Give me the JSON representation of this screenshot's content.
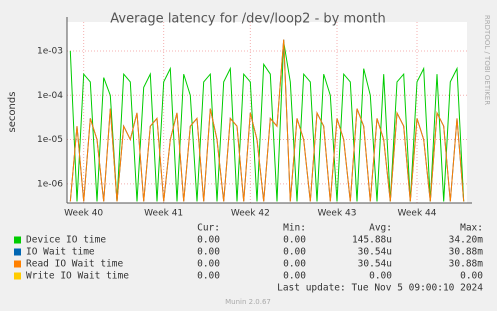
{
  "chart_data": {
    "type": "line",
    "title": "Average latency for /dev/loop2 - by month",
    "y_label": "seconds",
    "side_text": "RRDTOOL / TOBI OETIKER",
    "log_scale": true,
    "grid": true,
    "ylim": [
      3.7e-07,
      0.0045
    ],
    "yticks": [
      {
        "value": 1e-06,
        "label": "1e-06"
      },
      {
        "value": 1e-05,
        "label": "1e-05"
      },
      {
        "value": 0.0001,
        "label": "1e-04"
      },
      {
        "value": 0.001,
        "label": "1e-03"
      }
    ],
    "categories": [
      null,
      null,
      "Week 40",
      null,
      null,
      null,
      null,
      null,
      null,
      null,
      null,
      null,
      null,
      null,
      "Week 41",
      null,
      null,
      null,
      null,
      null,
      null,
      null,
      null,
      null,
      null,
      null,
      null,
      "Week 42",
      null,
      null,
      null,
      null,
      null,
      null,
      null,
      null,
      null,
      null,
      null,
      null,
      "Week 43",
      null,
      null,
      null,
      null,
      null,
      null,
      null,
      null,
      null,
      null,
      null,
      "Week 44",
      null,
      null,
      null,
      null,
      null,
      null,
      null
    ],
    "series": [
      {
        "name": "Device IO time",
        "color": "#00cc00",
        "values": [
          0.001,
          4e-07,
          0.0003,
          0.0002,
          4e-07,
          0.00025,
          0.0001,
          4e-07,
          0.0003,
          0.0002,
          4e-07,
          0.00015,
          0.0003,
          4e-07,
          0.0002,
          0.0004,
          4e-07,
          0.0003,
          0.0001,
          4e-07,
          0.0002,
          0.0003,
          4e-07,
          0.0002,
          0.0004,
          4e-07,
          0.0003,
          0.0002,
          4e-07,
          0.0005,
          0.0003,
          4e-07,
          0.0016,
          0.0002,
          4e-07,
          0.0003,
          0.0002,
          4e-07,
          0.0003,
          0.0001,
          4e-07,
          0.0003,
          0.0002,
          4e-07,
          0.0004,
          0.0001,
          4e-07,
          0.0003,
          4e-07,
          0.0002,
          0.0003,
          4e-07,
          0.0002,
          0.0004,
          4e-07,
          0.0003,
          4e-07,
          0.0002,
          0.0004,
          4e-07
        ]
      },
      {
        "name": "IO Wait time",
        "color": "#0066b3",
        "values": [
          4e-07,
          2e-05,
          4e-07,
          3e-05,
          1e-05,
          4e-07,
          5e-05,
          4e-07,
          2e-05,
          1e-05,
          4e-05,
          4e-07,
          2e-05,
          3e-05,
          4e-07,
          1e-05,
          4e-05,
          4e-07,
          2e-05,
          3e-05,
          4e-07,
          5e-05,
          1e-05,
          4e-07,
          3e-05,
          2e-05,
          4e-07,
          4e-05,
          1e-05,
          4e-07,
          3e-05,
          2e-05,
          0.0018,
          4e-07,
          3e-05,
          1e-05,
          4e-07,
          4e-05,
          2e-05,
          4e-07,
          3e-05,
          1e-05,
          4e-07,
          5e-05,
          2e-05,
          4e-07,
          3e-05,
          1e-05,
          4e-07,
          4e-05,
          2e-05,
          4e-07,
          3e-05,
          1e-05,
          4e-07,
          4e-05,
          2e-05,
          4e-07,
          3e-05,
          4e-07
        ]
      },
      {
        "name": "Read IO Wait time",
        "color": "#ff8000",
        "values": [
          4e-07,
          2e-05,
          4e-07,
          3e-05,
          1e-05,
          4e-07,
          5e-05,
          4e-07,
          2e-05,
          1e-05,
          4e-05,
          4e-07,
          2e-05,
          3e-05,
          4e-07,
          1e-05,
          4e-05,
          4e-07,
          2e-05,
          3e-05,
          4e-07,
          5e-05,
          1e-05,
          4e-07,
          3e-05,
          2e-05,
          4e-07,
          4e-05,
          1e-05,
          4e-07,
          3e-05,
          2e-05,
          0.0018,
          4e-07,
          3e-05,
          1e-05,
          4e-07,
          4e-05,
          2e-05,
          4e-07,
          3e-05,
          1e-05,
          4e-07,
          5e-05,
          2e-05,
          4e-07,
          3e-05,
          1e-05,
          4e-07,
          4e-05,
          2e-05,
          4e-07,
          3e-05,
          1e-05,
          4e-07,
          4e-05,
          2e-05,
          4e-07,
          3e-05,
          4e-07
        ]
      },
      {
        "name": "Write IO Wait time",
        "color": "#ffcc00"
      }
    ],
    "stats_headers": [
      "Cur:",
      "Min:",
      "Avg:",
      "Max:"
    ],
    "stats": [
      [
        "0.00",
        "0.00",
        "145.88u",
        "34.20m"
      ],
      [
        "0.00",
        "0.00",
        "30.54u",
        "30.88m"
      ],
      [
        "0.00",
        "0.00",
        "30.54u",
        "30.88m"
      ],
      [
        "0.00",
        "0.00",
        "0.00",
        "0.00"
      ]
    ],
    "last_update": "Last update: Tue Nov  5 09:00:10 2024",
    "footer": "Munin 2.0.67"
  }
}
